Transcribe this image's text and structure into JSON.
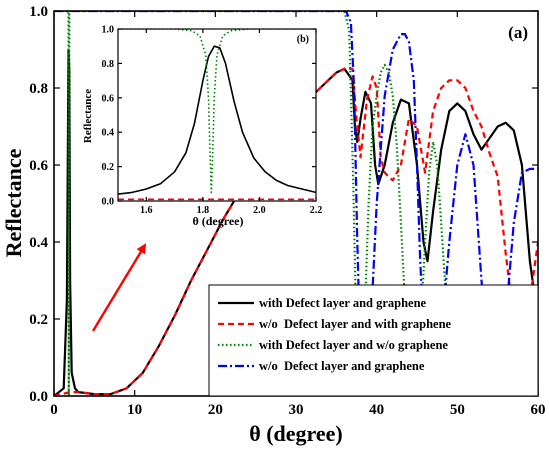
{
  "chart_data": [
    {
      "type": "line",
      "panel_label": "(a)",
      "xlabel": "θ (degree)",
      "ylabel": "Reflectance",
      "xlim": [
        0,
        60
      ],
      "ylim": [
        0,
        1.0
      ],
      "xticks": [
        0,
        10,
        20,
        30,
        40,
        50,
        60
      ],
      "yticks": [
        0.0,
        0.2,
        0.4,
        0.6,
        0.8,
        1.0
      ],
      "ytick_labels": [
        "0.0",
        "0.2",
        "0.4",
        "0.6",
        "0.8",
        "1.0"
      ],
      "legend_position": "lower-right",
      "annotation": "red arrow pointing up-right toward the inset",
      "series": [
        {
          "name": "with Defect layer and graphene",
          "color": "#000000",
          "style": "solid",
          "x": [
            0,
            1.2,
            1.6,
            1.8,
            1.9,
            2.0,
            2.2,
            2.6,
            3,
            5,
            7,
            9,
            11,
            13,
            15,
            17,
            19,
            21,
            23,
            25,
            27,
            29,
            31,
            33,
            35,
            36,
            37,
            37.3,
            37.6,
            38,
            38.6,
            39.3,
            39.8,
            40.2,
            41,
            42,
            43,
            44,
            45,
            45.8,
            46.3,
            47,
            48,
            49,
            50,
            51,
            52,
            53,
            54,
            55,
            56,
            57,
            58,
            59,
            60
          ],
          "y": [
            0.0,
            0.02,
            0.25,
            0.9,
            0.85,
            0.3,
            0.06,
            0.02,
            0.01,
            0.005,
            0.005,
            0.02,
            0.06,
            0.13,
            0.21,
            0.3,
            0.38,
            0.46,
            0.53,
            0.6,
            0.66,
            0.71,
            0.76,
            0.8,
            0.84,
            0.85,
            0.82,
            0.7,
            0.66,
            0.72,
            0.79,
            0.76,
            0.6,
            0.55,
            0.6,
            0.71,
            0.77,
            0.76,
            0.6,
            0.4,
            0.35,
            0.48,
            0.64,
            0.74,
            0.76,
            0.74,
            0.68,
            0.64,
            0.67,
            0.7,
            0.71,
            0.69,
            0.6,
            0.35,
            0.2
          ]
        },
        {
          "name": "w/o  Defect layer and with graphene",
          "color": "#ff0000",
          "style": "dashed",
          "x": [
            0,
            2,
            3,
            5,
            7,
            9,
            11,
            13,
            15,
            17,
            19,
            21,
            23,
            25,
            27,
            29,
            31,
            33,
            35,
            36,
            37,
            37.5,
            38,
            38.8,
            39.5,
            40,
            40.5,
            41,
            42,
            43,
            44,
            45,
            46,
            47,
            48,
            49,
            50,
            51,
            52,
            53,
            54,
            55,
            56,
            57,
            58,
            59,
            60
          ],
          "y": [
            0.0,
            0.01,
            0.01,
            0.005,
            0.005,
            0.02,
            0.06,
            0.13,
            0.21,
            0.3,
            0.38,
            0.46,
            0.53,
            0.6,
            0.66,
            0.71,
            0.76,
            0.8,
            0.84,
            0.85,
            0.85,
            0.72,
            0.62,
            0.77,
            0.83,
            0.8,
            0.62,
            0.58,
            0.56,
            0.6,
            0.72,
            0.7,
            0.58,
            0.74,
            0.8,
            0.82,
            0.82,
            0.8,
            0.74,
            0.7,
            0.63,
            0.57,
            0.37,
            0.2,
            0.17,
            0.25,
            0.4
          ]
        },
        {
          "name": "with Defect layer and w/o graphene",
          "color": "#008000",
          "style": "dotted",
          "x": [
            0,
            1.6,
            1.8,
            1.82,
            1.84,
            1.86,
            1.9,
            2.1,
            3,
            36,
            36.6,
            37.1,
            37.5,
            38,
            38.5,
            39,
            39.5,
            40,
            40.5,
            41,
            41.5,
            42,
            42.5,
            43,
            43.5,
            44,
            44.5,
            45,
            45.5,
            46,
            46.5,
            47,
            47.5,
            48,
            49,
            50,
            50.5,
            51,
            52,
            53,
            54,
            55,
            56,
            57,
            58,
            59,
            60
          ],
          "y": [
            1.0,
            1.0,
            1.0,
            0.3,
            0.0,
            0.3,
            1.0,
            1.0,
            1.0,
            1.0,
            0.95,
            0.55,
            0.15,
            0.05,
            0.2,
            0.5,
            0.7,
            0.78,
            0.84,
            0.86,
            0.84,
            0.78,
            0.65,
            0.45,
            0.25,
            0.1,
            0.03,
            0.05,
            0.2,
            0.4,
            0.58,
            0.66,
            0.6,
            0.45,
            0.12,
            0.02,
            0.01,
            0.02,
            0.05,
            0.01,
            0.02,
            0.05,
            0.02,
            0.01,
            0.02,
            0.01,
            0.02
          ]
        },
        {
          "name": "w/o  Defect layer and graphene",
          "color": "#0000ff",
          "style": "dash-dot",
          "x": [
            0,
            30,
            35,
            36.2,
            36.8,
            37.2,
            37.6,
            38,
            38.4,
            38.8,
            39.2,
            40,
            41,
            42,
            43,
            43.5,
            44,
            44.6,
            45,
            45.4,
            46,
            46.8,
            47.5,
            48.2,
            49,
            50,
            51,
            52,
            53,
            54,
            54.5,
            55,
            56,
            57,
            58,
            59,
            60
          ],
          "y": [
            1.0,
            1.0,
            1.0,
            1.0,
            0.97,
            0.8,
            0.4,
            0.1,
            0.01,
            0.02,
            0.15,
            0.5,
            0.78,
            0.9,
            0.94,
            0.94,
            0.92,
            0.82,
            0.6,
            0.35,
            0.1,
            0.02,
            0.04,
            0.2,
            0.4,
            0.6,
            0.68,
            0.6,
            0.3,
            0.05,
            0.01,
            0.02,
            0.2,
            0.45,
            0.58,
            0.59,
            0.59
          ]
        }
      ]
    },
    {
      "type": "line",
      "panel_label": "(b)",
      "xlabel": "θ (degree)",
      "ylabel": "Reflectance",
      "xlim": [
        1.5,
        2.2
      ],
      "ylim": [
        0,
        1.0
      ],
      "xticks": [
        1.6,
        1.8,
        2.0,
        2.2
      ],
      "xtick_labels": [
        "1.6",
        "1.8",
        "2.0",
        "2.2"
      ],
      "yticks": [
        0.0,
        0.2,
        0.4,
        0.6,
        0.8,
        1.0
      ],
      "ytick_labels": [
        "0.0",
        "0.2",
        "0.4",
        "0.6",
        "0.8",
        "1.0"
      ],
      "series": [
        {
          "name": "with Defect layer and graphene",
          "color": "#000000",
          "style": "solid",
          "x": [
            1.5,
            1.55,
            1.6,
            1.65,
            1.7,
            1.74,
            1.77,
            1.8,
            1.82,
            1.84,
            1.86,
            1.88,
            1.91,
            1.94,
            1.98,
            2.02,
            2.06,
            2.1,
            2.15,
            2.2
          ],
          "y": [
            0.04,
            0.05,
            0.07,
            0.1,
            0.17,
            0.28,
            0.45,
            0.7,
            0.84,
            0.9,
            0.89,
            0.8,
            0.58,
            0.4,
            0.25,
            0.17,
            0.12,
            0.09,
            0.07,
            0.05
          ]
        },
        {
          "name": "w/o  Defect layer and with graphene",
          "color": "#ff0000",
          "style": "dashed",
          "x": [
            1.5,
            2.2
          ],
          "y": [
            0.01,
            0.01
          ]
        },
        {
          "name": "with Defect layer and w/o graphene",
          "color": "#008000",
          "style": "dotted",
          "x": [
            1.5,
            1.7,
            1.76,
            1.79,
            1.81,
            1.82,
            1.825,
            1.83,
            1.835,
            1.84,
            1.85,
            1.87,
            1.9,
            1.96,
            2.2
          ],
          "y": [
            1.0,
            1.0,
            0.99,
            0.96,
            0.85,
            0.6,
            0.3,
            0.05,
            0.3,
            0.6,
            0.85,
            0.96,
            0.99,
            1.0,
            1.0
          ]
        }
      ]
    }
  ]
}
